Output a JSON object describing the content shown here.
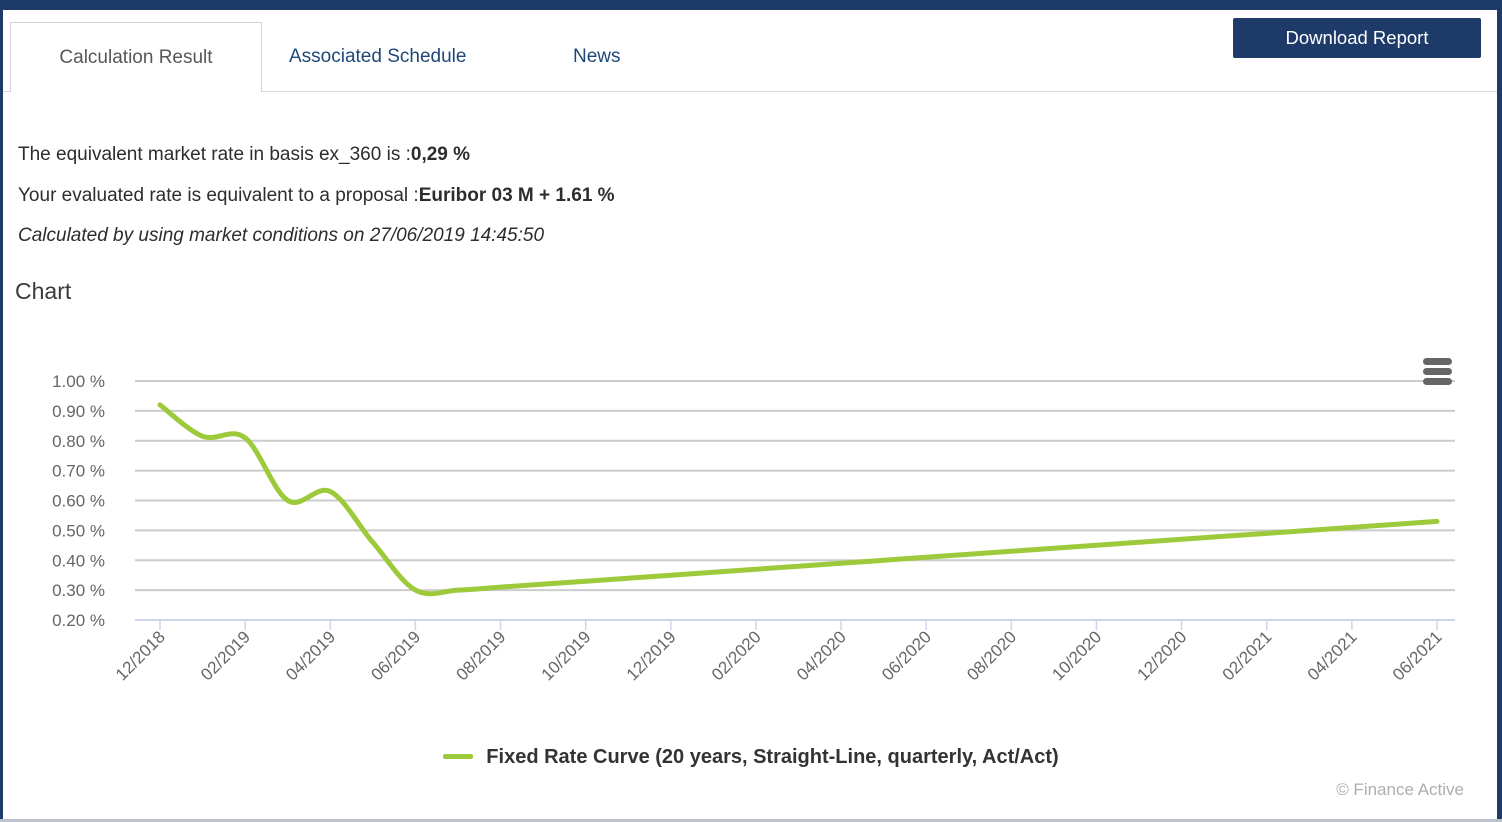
{
  "page": {
    "tabs": [
      {
        "label": "Calculation Result",
        "active": true
      },
      {
        "label": "Associated Schedule",
        "active": false
      },
      {
        "label": "News",
        "active": false
      }
    ],
    "download_button": "Download Report"
  },
  "result": {
    "line1_prefix": "The equivalent market rate in basis ex_360 is :",
    "line1_value": "0,29 %",
    "line2_prefix": "Your evaluated rate is equivalent to a proposal :",
    "line2_value": "Euribor 03 M + 1.61 %",
    "line3": "Calculated by using market conditions on 27/06/2019 14:45:50"
  },
  "chart_section": {
    "heading": "Chart",
    "export_menu_icon": "hamburger-menu"
  },
  "chart_data": {
    "type": "line",
    "title": "",
    "xlabel": "",
    "ylabel": "",
    "grid": true,
    "legend_position": "bottom",
    "ylim": [
      0.2,
      1.0
    ],
    "y_ticks": [
      "1.00 %",
      "0.90 %",
      "0.80 %",
      "0.70 %",
      "0.60 %",
      "0.50 %",
      "0.40 %",
      "0.30 %",
      "0.20 %"
    ],
    "x_tick_labels": [
      "12/2018",
      "02/2019",
      "04/2019",
      "06/2019",
      "08/2019",
      "10/2019",
      "12/2019",
      "02/2020",
      "04/2020",
      "06/2020",
      "08/2020",
      "10/2020",
      "12/2020",
      "02/2021",
      "04/2021",
      "06/2021"
    ],
    "x": [
      "12/2018",
      "01/2019",
      "02/2019",
      "03/2019",
      "04/2019",
      "05/2019",
      "06/2019",
      "07/2019",
      "08/2019",
      "09/2019",
      "10/2019",
      "11/2019",
      "12/2019",
      "01/2020",
      "02/2020",
      "03/2020",
      "04/2020",
      "05/2020",
      "06/2020",
      "07/2020",
      "08/2020",
      "09/2020",
      "10/2020",
      "11/2020",
      "12/2020",
      "01/2021",
      "02/2021",
      "03/2021",
      "04/2021",
      "05/2021",
      "06/2021"
    ],
    "series": [
      {
        "name": "Fixed Rate Curve (20 years, Straight‑Line, quarterly, Act/Act)",
        "color": "#9cca3a",
        "values": [
          0.92,
          0.815,
          0.81,
          0.6,
          0.63,
          0.46,
          0.3,
          0.3,
          0.31,
          0.32,
          0.33,
          0.34,
          0.35,
          0.36,
          0.37,
          0.38,
          0.39,
          0.4,
          0.41,
          0.42,
          0.43,
          0.44,
          0.45,
          0.46,
          0.47,
          0.48,
          0.49,
          0.5,
          0.51,
          0.52,
          0.53
        ]
      }
    ]
  },
  "footer": {
    "copyright": "© Finance Active"
  },
  "colors": {
    "accent_navy": "#1d3a68",
    "link_blue": "#1e4878",
    "grid_gray": "#cccccc",
    "axis_blue": "#ccd6eb",
    "axis_label_gray": "#666666",
    "series_green": "#9cca3a"
  }
}
